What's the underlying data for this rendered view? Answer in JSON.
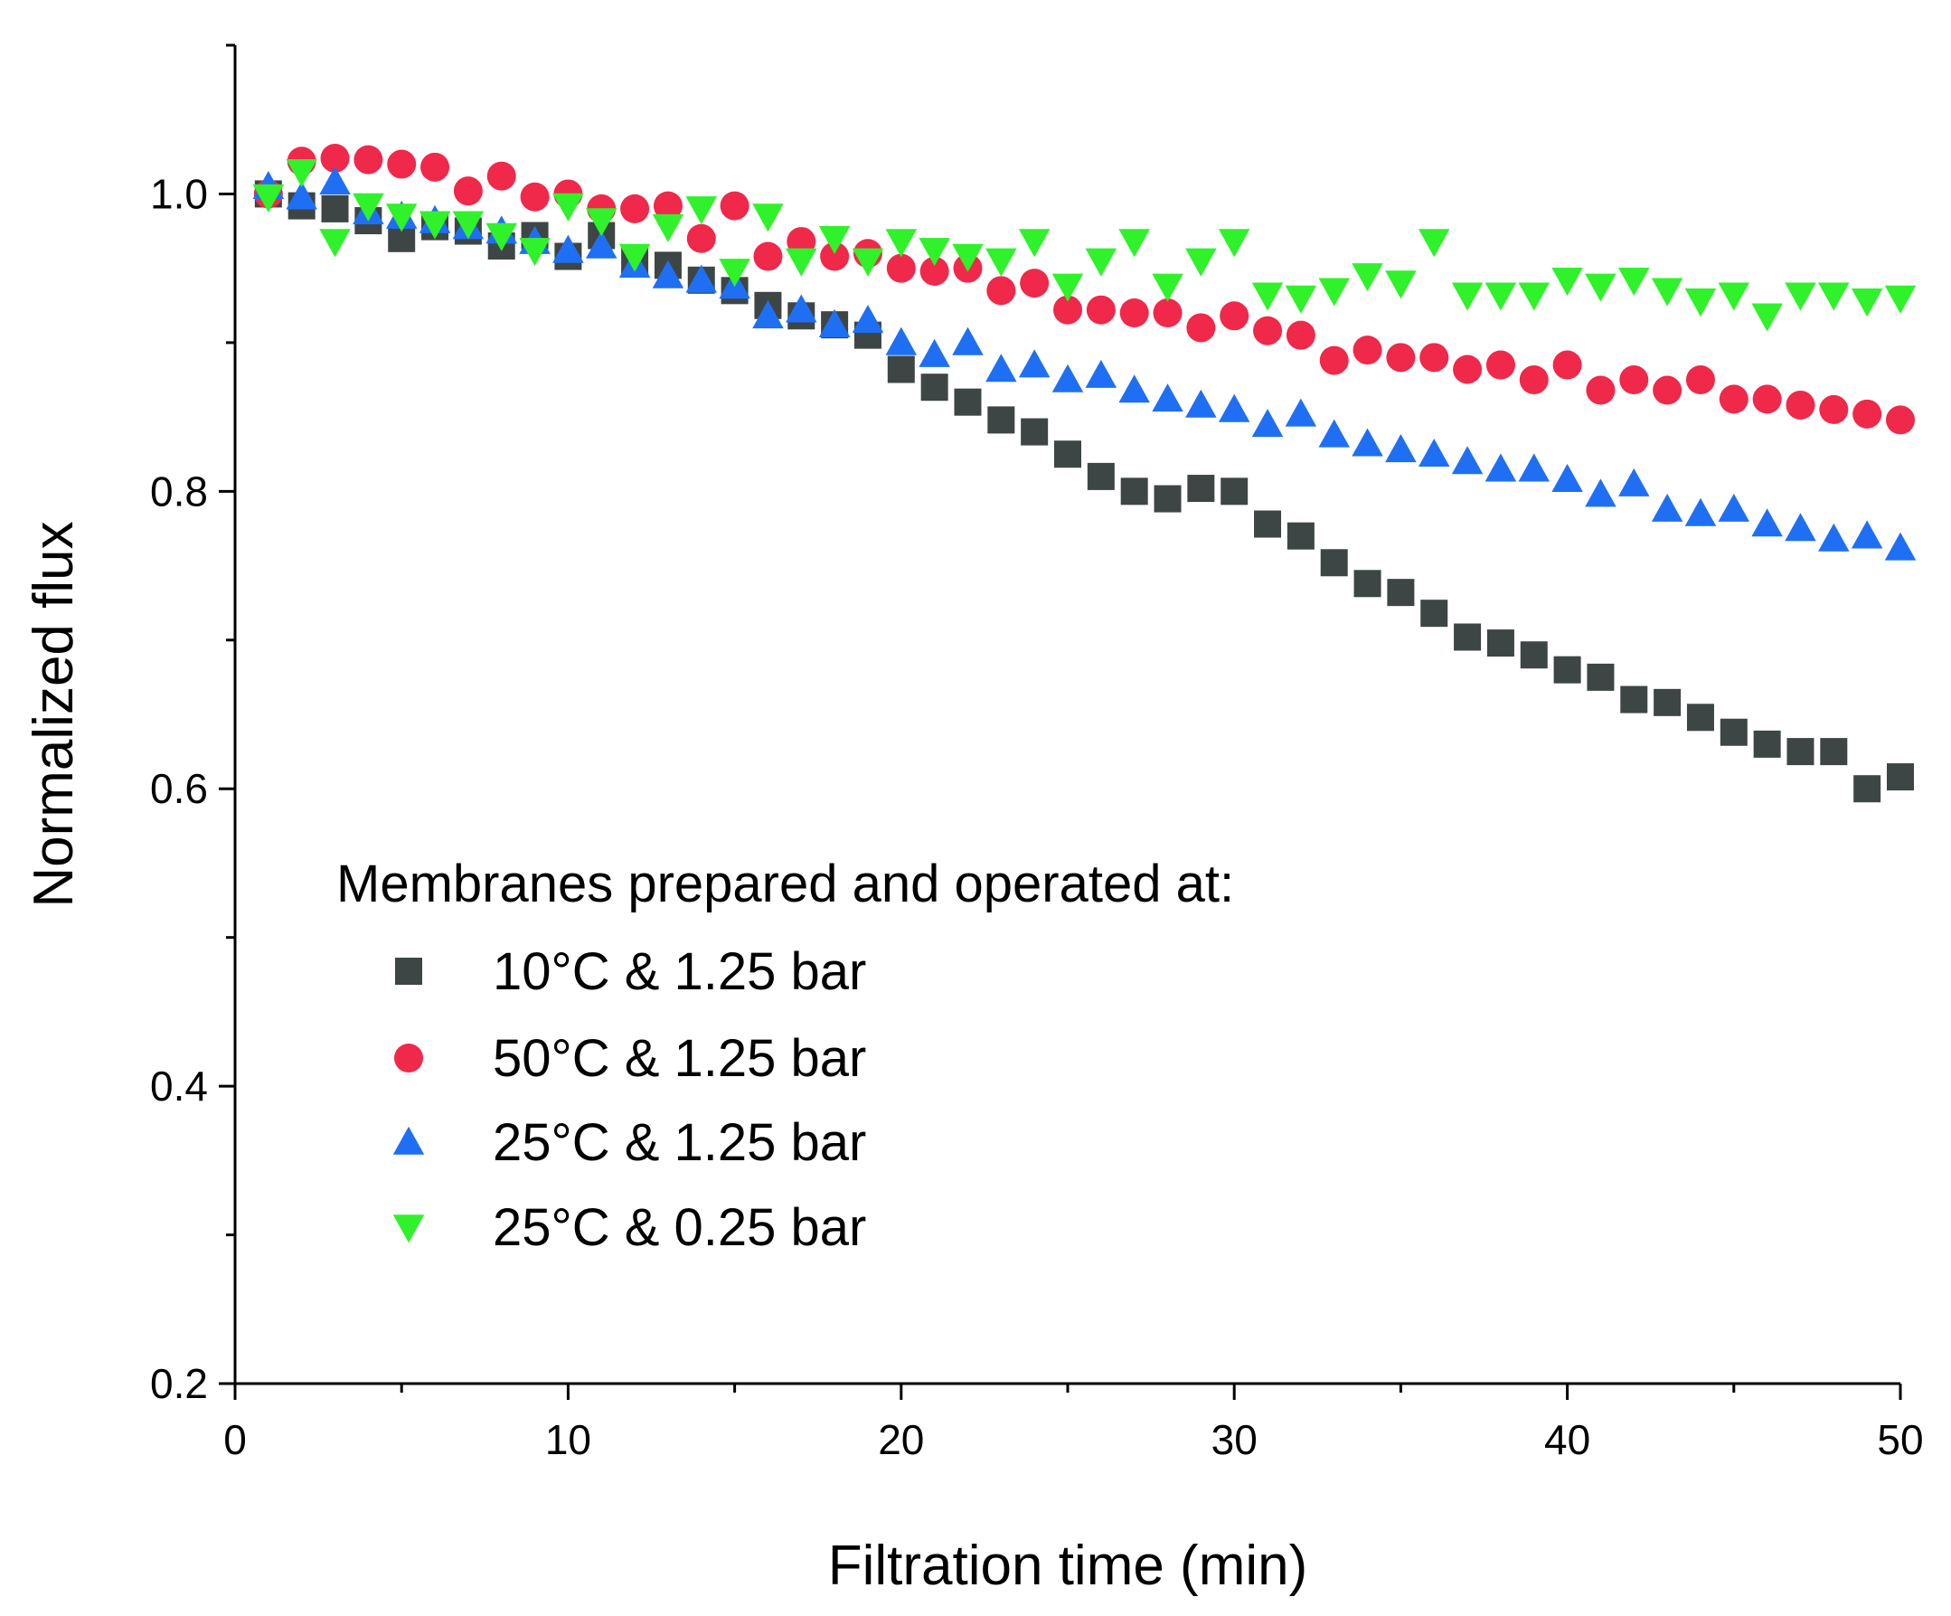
{
  "chart_data": {
    "type": "scatter",
    "title": "",
    "xlabel": "Filtration time (min)",
    "ylabel": "Normalized flux",
    "xlim": [
      0,
      50
    ],
    "ylim": [
      0.2,
      1.1
    ],
    "xticks": [
      0,
      10,
      20,
      30,
      40,
      50
    ],
    "xtick_labels": [
      "0",
      "10",
      "20",
      "30",
      "40",
      "50"
    ],
    "yticks": [
      0.2,
      0.4,
      0.6,
      0.8,
      1.0
    ],
    "ytick_labels": [
      "0.2",
      "0.4",
      "0.6",
      "0.8",
      "1.0"
    ],
    "grid": false,
    "legend": {
      "title": "Membranes prepared and operated at:",
      "position": "bottom-left"
    },
    "series": [
      {
        "name": "10°C & 1.25 bar",
        "marker": "square",
        "color": "#3d4645",
        "x": [
          1,
          2,
          3,
          4,
          5,
          6,
          7,
          8,
          9,
          10,
          11,
          12,
          13,
          14,
          15,
          16,
          17,
          18,
          19,
          20,
          21,
          22,
          23,
          24,
          25,
          26,
          27,
          28,
          29,
          30,
          31,
          32,
          33,
          34,
          35,
          36,
          37,
          38,
          39,
          40,
          41,
          42,
          43,
          44,
          45,
          46,
          47,
          48,
          49,
          50
        ],
        "y": [
          1.0,
          0.992,
          0.99,
          0.982,
          0.97,
          0.978,
          0.975,
          0.965,
          0.972,
          0.958,
          0.972,
          0.955,
          0.952,
          0.942,
          0.935,
          0.925,
          0.918,
          0.912,
          0.905,
          0.882,
          0.87,
          0.86,
          0.848,
          0.84,
          0.825,
          0.81,
          0.8,
          0.795,
          0.802,
          0.8,
          0.778,
          0.77,
          0.752,
          0.738,
          0.732,
          0.718,
          0.702,
          0.698,
          0.69,
          0.68,
          0.675,
          0.66,
          0.658,
          0.648,
          0.638,
          0.63,
          0.625,
          0.625,
          0.6,
          0.608
        ]
      },
      {
        "name": "50°C & 1.25 bar",
        "marker": "circle",
        "color": "#f0284a",
        "x": [
          1,
          2,
          3,
          4,
          5,
          6,
          7,
          8,
          9,
          10,
          11,
          12,
          13,
          14,
          15,
          16,
          17,
          18,
          19,
          20,
          21,
          22,
          23,
          24,
          25,
          26,
          27,
          28,
          29,
          30,
          31,
          32,
          33,
          34,
          35,
          36,
          37,
          38,
          39,
          40,
          41,
          42,
          43,
          44,
          45,
          46,
          47,
          48,
          49,
          50
        ],
        "y": [
          1.0,
          1.022,
          1.024,
          1.023,
          1.02,
          1.018,
          1.002,
          1.012,
          0.998,
          1.0,
          0.99,
          0.99,
          0.992,
          0.97,
          0.992,
          0.958,
          0.968,
          0.958,
          0.96,
          0.95,
          0.948,
          0.95,
          0.935,
          0.94,
          0.922,
          0.922,
          0.92,
          0.92,
          0.91,
          0.918,
          0.908,
          0.905,
          0.888,
          0.895,
          0.89,
          0.89,
          0.882,
          0.885,
          0.875,
          0.885,
          0.868,
          0.875,
          0.868,
          0.875,
          0.862,
          0.862,
          0.858,
          0.855,
          0.852,
          0.848
        ]
      },
      {
        "name": "25°C & 1.25 bar",
        "marker": "triangle-up",
        "color": "#1f6ff4",
        "x": [
          1,
          2,
          3,
          4,
          5,
          6,
          7,
          8,
          9,
          10,
          11,
          12,
          13,
          14,
          15,
          16,
          17,
          18,
          19,
          20,
          21,
          22,
          23,
          24,
          25,
          26,
          27,
          28,
          29,
          30,
          31,
          32,
          33,
          34,
          35,
          36,
          37,
          38,
          39,
          40,
          41,
          42,
          43,
          44,
          45,
          46,
          47,
          48,
          49,
          50
        ],
        "y": [
          1.005,
          0.998,
          1.008,
          0.988,
          0.985,
          0.982,
          0.978,
          0.975,
          0.968,
          0.962,
          0.965,
          0.952,
          0.945,
          0.942,
          0.938,
          0.918,
          0.922,
          0.912,
          0.915,
          0.9,
          0.892,
          0.9,
          0.882,
          0.885,
          0.875,
          0.878,
          0.868,
          0.862,
          0.858,
          0.855,
          0.845,
          0.852,
          0.838,
          0.832,
          0.828,
          0.825,
          0.82,
          0.815,
          0.815,
          0.808,
          0.798,
          0.805,
          0.788,
          0.785,
          0.788,
          0.778,
          0.775,
          0.768,
          0.77,
          0.762
        ]
      },
      {
        "name": "25°C & 0.25 bar",
        "marker": "triangle-down",
        "color": "#2ff22a",
        "x": [
          1,
          2,
          3,
          4,
          5,
          6,
          7,
          8,
          9,
          10,
          11,
          12,
          13,
          14,
          15,
          16,
          17,
          18,
          19,
          20,
          21,
          22,
          23,
          24,
          25,
          26,
          27,
          28,
          29,
          30,
          31,
          32,
          33,
          34,
          35,
          36,
          37,
          38,
          39,
          40,
          41,
          42,
          43,
          44,
          45,
          46,
          47,
          48,
          49,
          50
        ],
        "y": [
          0.998,
          1.015,
          0.968,
          0.992,
          0.985,
          0.98,
          0.98,
          0.972,
          0.962,
          0.992,
          0.982,
          0.958,
          0.978,
          0.99,
          0.948,
          0.985,
          0.955,
          0.97,
          0.955,
          0.968,
          0.962,
          0.958,
          0.955,
          0.968,
          0.938,
          0.955,
          0.968,
          0.938,
          0.955,
          0.968,
          0.932,
          0.93,
          0.935,
          0.945,
          0.94,
          0.968,
          0.932,
          0.932,
          0.932,
          0.942,
          0.938,
          0.942,
          0.935,
          0.928,
          0.932,
          0.918,
          0.932,
          0.932,
          0.928,
          0.93
        ]
      }
    ]
  }
}
